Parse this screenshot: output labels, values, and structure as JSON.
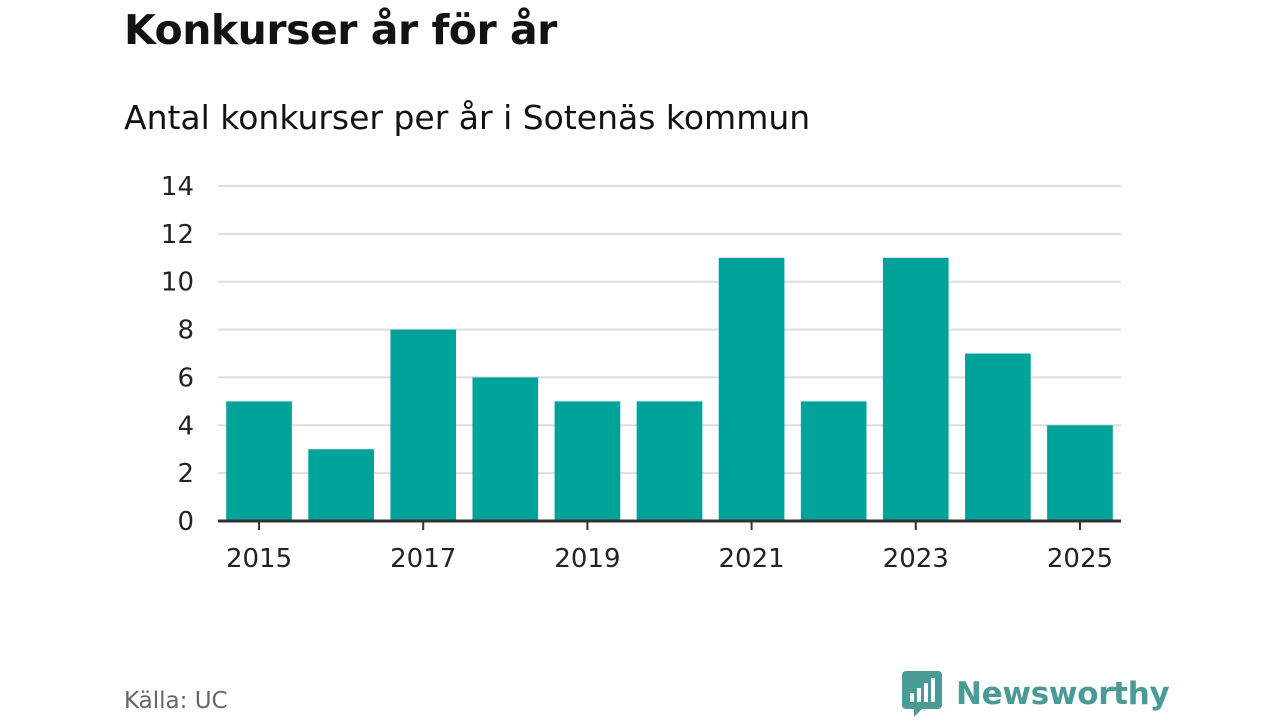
{
  "header": {
    "title": "Konkurser år för år",
    "subtitle": "Antal konkurser per år i Sotenäs kommun"
  },
  "footer": {
    "source": "Källa: UC",
    "brand": "Newsworthy",
    "brand_icon": "bar-chart-bubble-icon"
  },
  "colors": {
    "bar": "#00a39a",
    "grid": "#dddddd",
    "axis": "#333333",
    "brand": "#4a9a95"
  },
  "chart_data": {
    "type": "bar",
    "title": "Konkurser år för år",
    "subtitle": "Antal konkurser per år i Sotenäs kommun",
    "xlabel": "",
    "ylabel": "",
    "categories": [
      "2015",
      "2016",
      "2017",
      "2018",
      "2019",
      "2020",
      "2021",
      "2022",
      "2023",
      "2024",
      "2025"
    ],
    "values": [
      5,
      3,
      8,
      6,
      5,
      5,
      11,
      5,
      11,
      7,
      4
    ],
    "ylim": [
      0,
      14
    ],
    "yticks": [
      0,
      2,
      4,
      6,
      8,
      10,
      12,
      14
    ],
    "xtick_labels": [
      "2015",
      "2017",
      "2019",
      "2021",
      "2023",
      "2025"
    ],
    "grid": true,
    "legend": "none"
  }
}
